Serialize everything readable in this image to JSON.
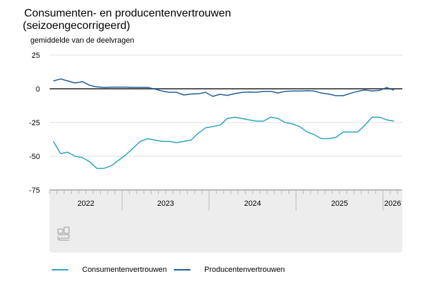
{
  "title_line1": "Consumenten- en producentenvertrouwen",
  "title_line2": "(seizoengecorrigeerd)",
  "unit_label": "gemiddelde van de deelvragen",
  "logo_text": "cbs",
  "chart_data": {
    "type": "line",
    "title": "Consumenten- en producentenvertrouwen (seizoengecorrigeerd)",
    "ylabel": "gemiddelde van de deelvragen",
    "ylim": [
      -75,
      25
    ],
    "y_ticks": [
      "25",
      "0",
      "-25",
      "-50",
      "-75"
    ],
    "y_tick_values": [
      25,
      0,
      -25,
      -50,
      -75
    ],
    "x_start": "2022-03",
    "x_end": "2026-02",
    "x_frequency": "monthly",
    "year_labels": [
      "2022",
      "2023",
      "2024",
      "2025",
      "2026"
    ],
    "grid": "horizontal",
    "legend_position": "bottom",
    "series": [
      {
        "name": "Consumentenvertrouwen",
        "color": "#2ba3bd",
        "values": [
          -39,
          -48,
          -47,
          -50,
          -51,
          -54,
          -59,
          -59,
          -57,
          -53,
          -49,
          -44,
          -39,
          -37,
          -38,
          -39,
          -39,
          -40,
          -39,
          -38,
          -33,
          -29,
          -28,
          -27,
          -22,
          -21,
          -22,
          -23,
          -24,
          -24,
          -21,
          -22,
          -25,
          -26,
          -28,
          -32,
          -34,
          -37,
          -37,
          -36,
          -32,
          -32,
          -32,
          -27,
          -21,
          -21,
          -23,
          -24
        ]
      },
      {
        "name": "Producentenvertrouwen",
        "color": "#1d5b95",
        "values": [
          5.8,
          7.3,
          5.8,
          4.3,
          5.3,
          2.6,
          1.4,
          1.0,
          1.2,
          1.2,
          1.2,
          1.0,
          1.0,
          1.0,
          -0.2,
          -1.7,
          -2.6,
          -2.6,
          -4.6,
          -3.9,
          -3.7,
          -2.6,
          -5.6,
          -4.1,
          -4.9,
          -3.6,
          -2.7,
          -2.4,
          -2.6,
          -1.9,
          -1.9,
          -3.1,
          -1.9,
          -1.7,
          -1.7,
          -1.4,
          -1.7,
          -3.2,
          -3.9,
          -5.1,
          -5.1,
          -3.4,
          -1.9,
          -0.9,
          -1.7,
          -1.2,
          0.9,
          -1.0
        ]
      }
    ]
  }
}
